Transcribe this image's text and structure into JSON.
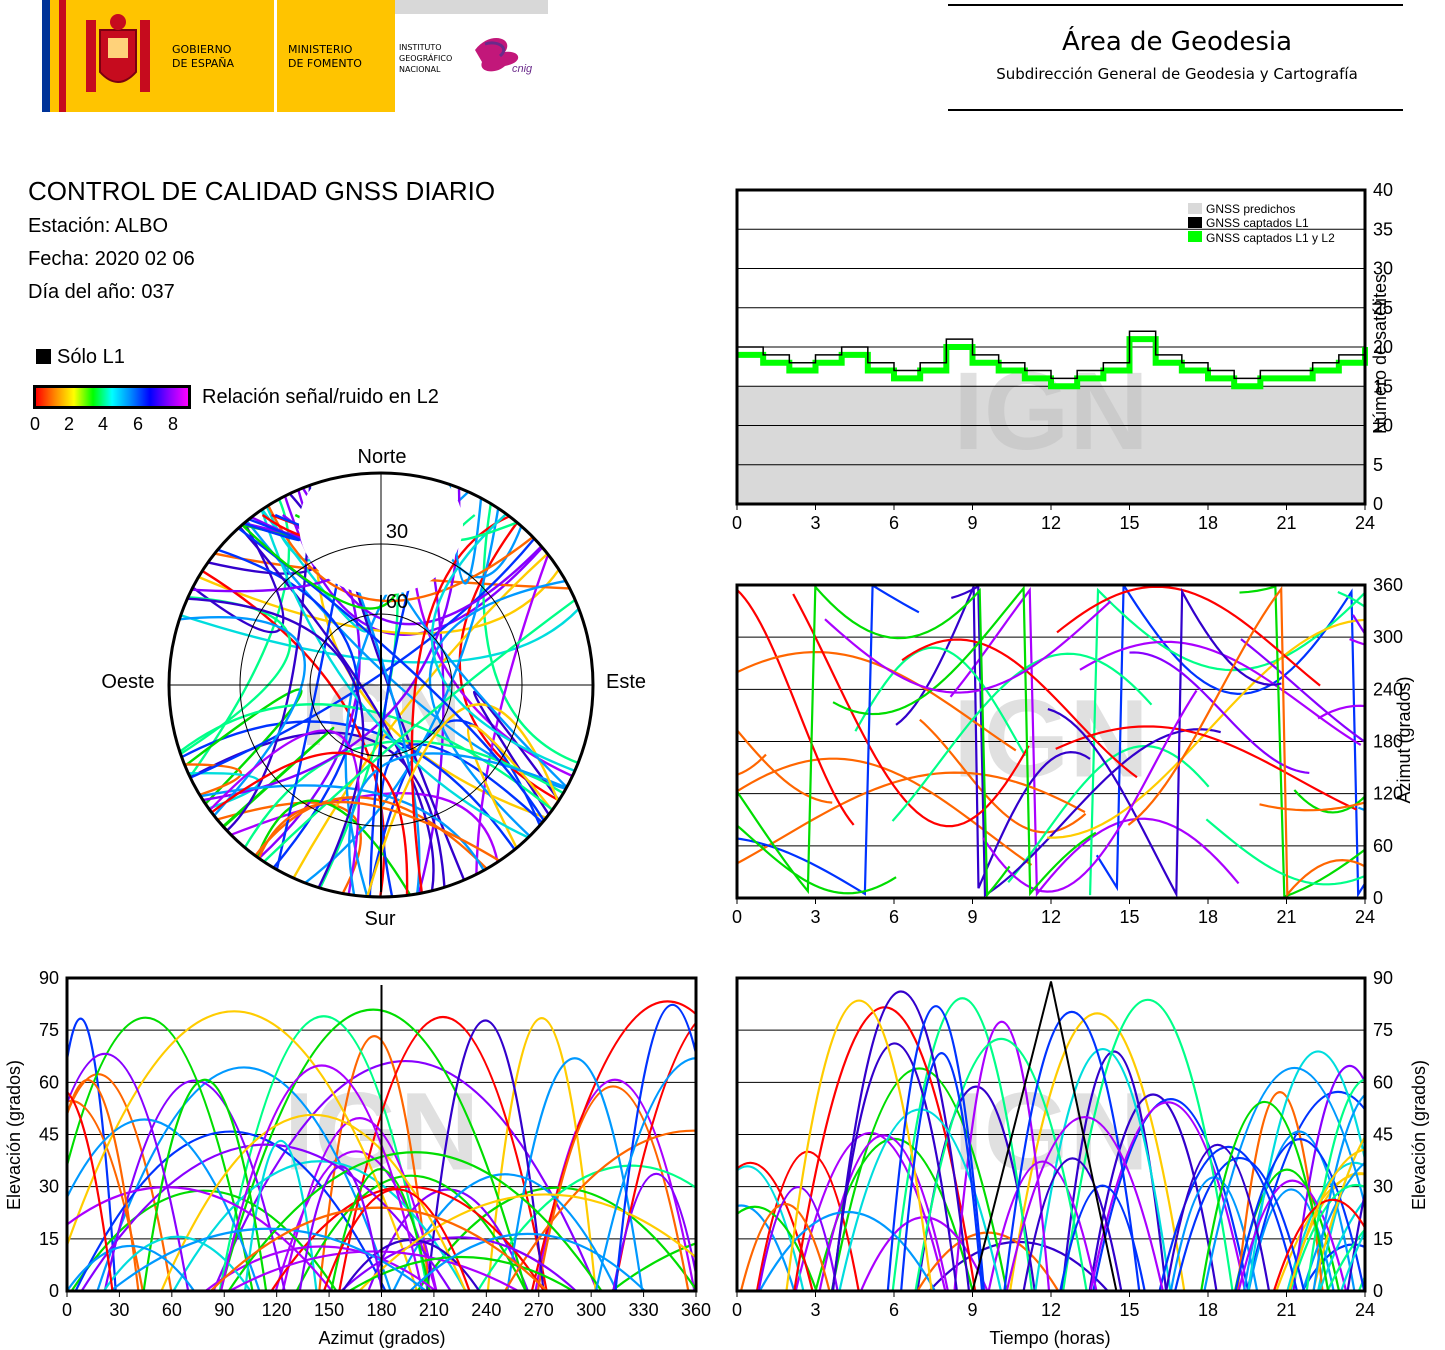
{
  "header": {
    "gov_line1": "GOBIERNO",
    "gov_line2": "DE ESPAÑA",
    "ministry_line1": "MINISTERIO",
    "ministry_line2": "DE FOMENTO",
    "ign_line1": "INSTITUTO",
    "ign_line2": "GEOGRÁFICO",
    "ign_line3": "NACIONAL",
    "cnig": "cnig",
    "area_title": "Área de Geodesia",
    "area_subtitle": "Subdirección General de Geodesia y Cartografía",
    "colors": {
      "flag_red": "#c60b1e",
      "flag_yellow": "#ffc400",
      "eu_blue": "#003399"
    }
  },
  "info": {
    "title": "CONTROL DE CALIDAD GNSS DIARIO",
    "station": "Estación: ALBO",
    "date": "Fecha: 2020 02 06",
    "doy": "Día del año: 037"
  },
  "legend": {
    "l1_only": "Sólo L1",
    "snr_label": "Relación señal/ruido en L2",
    "snr_ticks": [
      "0",
      "2",
      "4",
      "6",
      "8"
    ]
  },
  "watermark": "IGN",
  "chart_data": [
    {
      "type": "area",
      "panel": "satellite-count",
      "x_ticks": [
        "0",
        "3",
        "6",
        "9",
        "12",
        "15",
        "18",
        "21",
        "24"
      ],
      "y_ticks": [
        "0",
        "5",
        "10",
        "15",
        "20",
        "25",
        "30",
        "35",
        "40"
      ],
      "xlim": [
        0,
        24
      ],
      "ylim": [
        0,
        40
      ],
      "ylabel": "Número de satélites",
      "grid": true,
      "legend_position": "top-right",
      "series": [
        {
          "name": "GNSS predichos",
          "color": "#d9d9d9",
          "x": [
            0,
            3,
            6,
            9,
            12,
            15,
            18,
            21,
            24
          ],
          "values": [
            15,
            15,
            15,
            15,
            15,
            15,
            15,
            15,
            15
          ]
        },
        {
          "name": "GNSS captados L1",
          "color": "#000000",
          "x": [
            0,
            1,
            2,
            3,
            4,
            5,
            6,
            7,
            8,
            9,
            10,
            11,
            12,
            13,
            14,
            15,
            16,
            17,
            18,
            19,
            20,
            21,
            22,
            23,
            24
          ],
          "values": [
            20,
            19,
            18,
            19,
            20,
            18,
            17,
            18,
            21,
            19,
            18,
            17,
            16,
            17,
            18,
            22,
            19,
            18,
            17,
            16,
            17,
            17,
            18,
            19,
            21
          ]
        },
        {
          "name": "GNSS captados L1 y L2",
          "color": "#00ff00",
          "x": [
            0,
            1,
            2,
            3,
            4,
            5,
            6,
            7,
            8,
            9,
            10,
            11,
            12,
            13,
            14,
            15,
            16,
            17,
            18,
            19,
            20,
            21,
            22,
            23,
            24
          ],
          "values": [
            19,
            18,
            17,
            18,
            19,
            17,
            16,
            17,
            20,
            18,
            17,
            16,
            15,
            16,
            17,
            21,
            18,
            17,
            16,
            15,
            16,
            16,
            17,
            18,
            20
          ]
        }
      ]
    },
    {
      "type": "scatter",
      "panel": "skyplot",
      "labels": {
        "north": "Norte",
        "south": "Sur",
        "west": "Oeste",
        "east": "Este"
      },
      "ring_labels": [
        "30",
        "60"
      ]
    },
    {
      "type": "scatter",
      "panel": "azimuth-vs-time",
      "x_ticks": [
        "0",
        "3",
        "6",
        "9",
        "12",
        "15",
        "18",
        "21",
        "24"
      ],
      "y_ticks": [
        "0",
        "60",
        "120",
        "180",
        "240",
        "300",
        "360"
      ],
      "xlim": [
        0,
        24
      ],
      "ylim": [
        0,
        360
      ],
      "ylabel": "Azimut (grados)",
      "grid": true
    },
    {
      "type": "scatter",
      "panel": "elevation-vs-azimuth",
      "x_ticks": [
        "0",
        "30",
        "60",
        "90",
        "120",
        "150",
        "180",
        "210",
        "240",
        "270",
        "300",
        "330",
        "360"
      ],
      "y_ticks": [
        "0",
        "15",
        "30",
        "45",
        "60",
        "75",
        "90"
      ],
      "xlim": [
        0,
        360
      ],
      "ylim": [
        0,
        90
      ],
      "xlabel": "Azimut (grados)",
      "ylabel": "Elevación (grados)",
      "grid": true
    },
    {
      "type": "scatter",
      "panel": "elevation-vs-time",
      "x_ticks": [
        "0",
        "3",
        "6",
        "9",
        "12",
        "15",
        "18",
        "21",
        "24"
      ],
      "y_ticks": [
        "0",
        "15",
        "30",
        "45",
        "60",
        "75",
        "90"
      ],
      "xlim": [
        0,
        24
      ],
      "ylim": [
        0,
        90
      ],
      "xlabel": "Tiempo (horas)",
      "ylabel": "Elevación (grados)",
      "grid": true
    }
  ]
}
